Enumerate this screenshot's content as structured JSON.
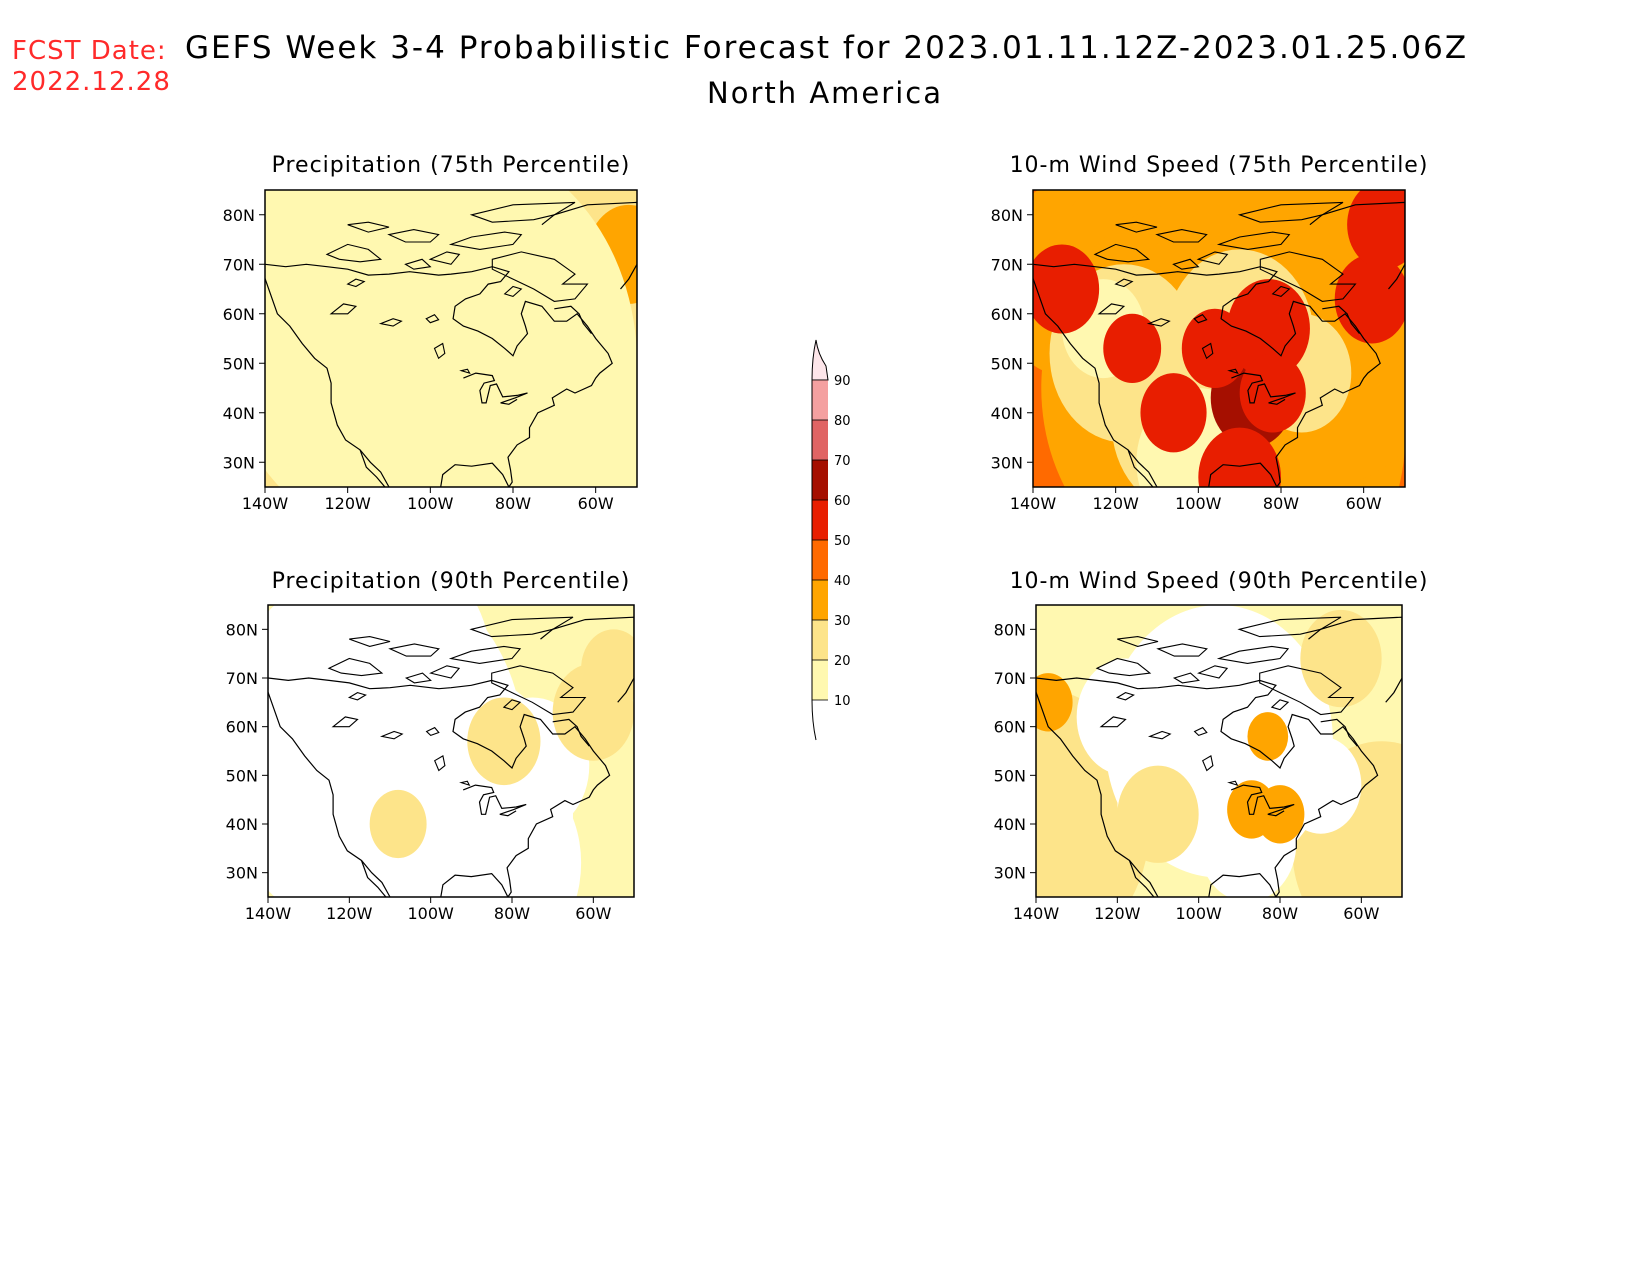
{
  "header": {
    "fcst_line1": "FCST Date:",
    "fcst_line2": "2022.12.28",
    "title": "GEFS Week 3-4 Probabilistic Forecast for 2023.01.11.12Z-2023.01.25.06Z",
    "subtitle": "North America"
  },
  "map_axes": {
    "lon_labels": [
      "140W",
      "120W",
      "100W",
      "80W",
      "60W"
    ],
    "lat_labels": [
      "80N",
      "70N",
      "60N",
      "50N",
      "40N",
      "30N"
    ],
    "lon_range": [
      -140,
      -50
    ],
    "lat_range": [
      25,
      85
    ]
  },
  "panels": [
    {
      "id": "precip-75",
      "title": "Precipitation (75th Percentile)",
      "base_class": 20
    },
    {
      "id": "wind-75",
      "title": "10-m Wind Speed (75th Percentile)",
      "base_class": 40
    },
    {
      "id": "precip-90",
      "title": "Precipitation (90th Percentile)",
      "base_class": 10
    },
    {
      "id": "wind-90",
      "title": "10-m Wind Speed (90th Percentile)",
      "base_class": 10
    }
  ],
  "colorbar": {
    "levels": [
      "90",
      "80",
      "70",
      "60",
      "50",
      "40",
      "30",
      "20",
      "10"
    ],
    "colors": {
      "c0": "#ffffff",
      "c10": "#fff8b0",
      "c20": "#fde48a",
      "c30": "#ffa500",
      "c40": "#ff6a00",
      "c50": "#e81e00",
      "c60": "#a50f00",
      "c70": "#e06464",
      "c80": "#f4a0a0",
      "c90": "#fde6ea"
    }
  }
}
